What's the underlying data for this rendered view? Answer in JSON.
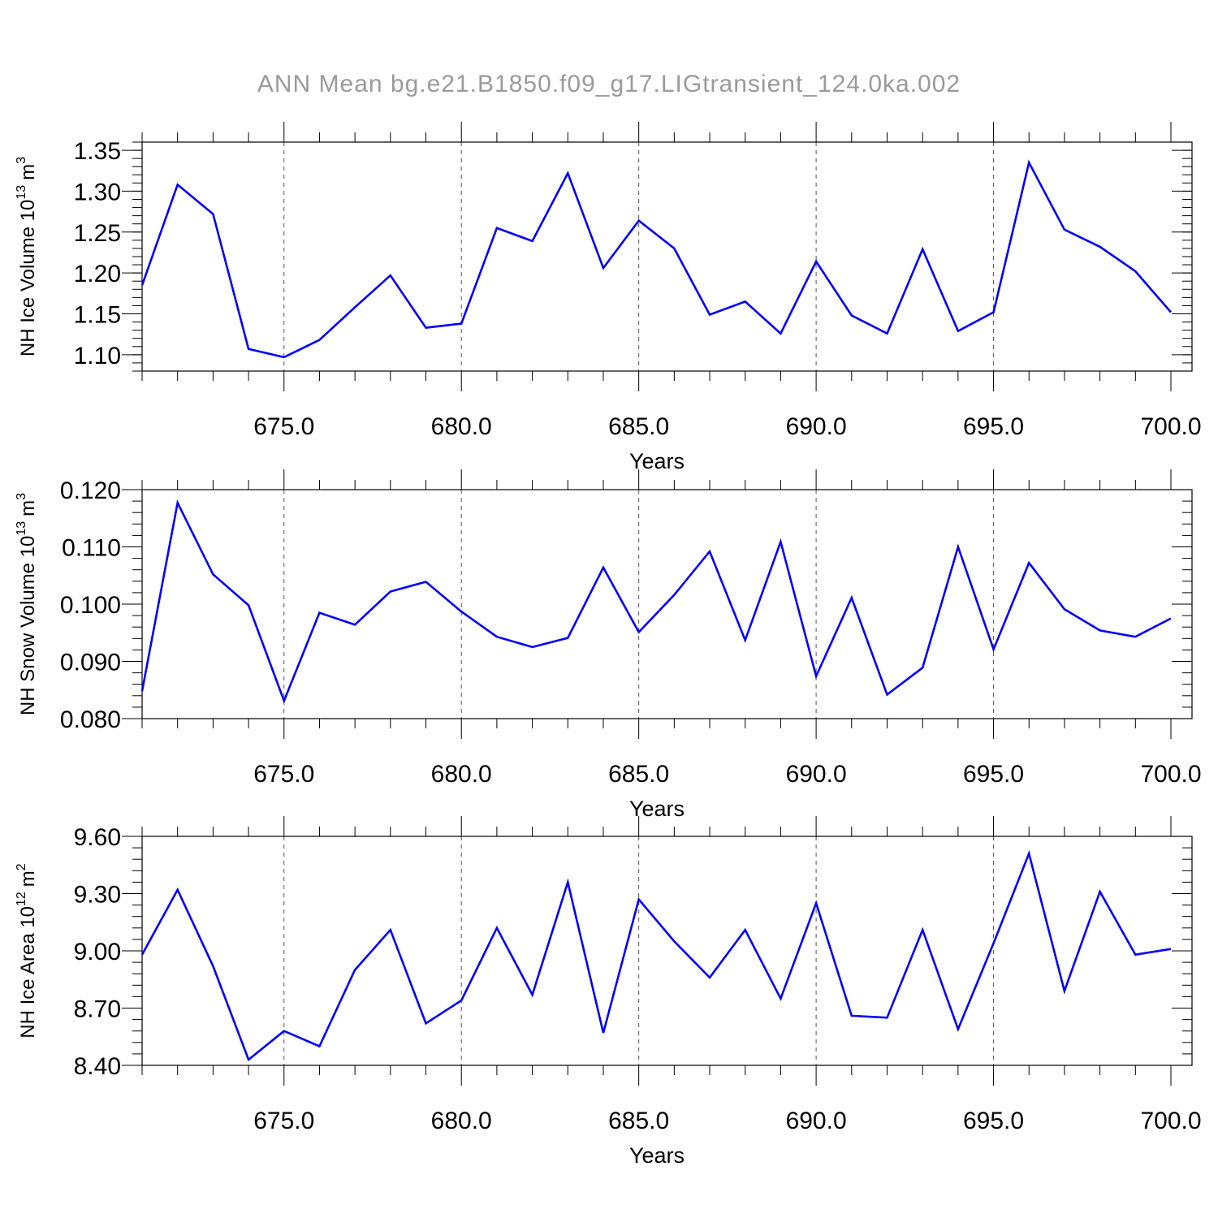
{
  "figure": {
    "title": "ANN Mean bg.e21.B1850.f09_g17.LIGtransient_124.0ka.002",
    "line_color": "#0000ff",
    "grid": "vertical dashed gray lines at major x ticks"
  },
  "chart_data": [
    {
      "type": "line",
      "title": "",
      "xlabel": "Years",
      "ylabel": "NH Ice Volume 10",
      "ylabel_sup": "13",
      "ylabel_unit": "m",
      "ylabel_unit_sup": "3",
      "xlim": [
        671,
        700
      ],
      "ylim": [
        1.08,
        1.36
      ],
      "xticks": [
        675,
        680,
        685,
        690,
        695,
        700
      ],
      "xtick_labels": [
        "675.0",
        "680.0",
        "685.0",
        "690.0",
        "695.0",
        "700.0"
      ],
      "yticks": [
        1.1,
        1.15,
        1.2,
        1.25,
        1.3,
        1.35
      ],
      "ytick_labels": [
        "1.10",
        "1.15",
        "1.20",
        "1.25",
        "1.30",
        "1.35"
      ],
      "yminor_step": 0.01,
      "x": [
        671,
        672,
        673,
        674,
        675,
        676,
        677,
        678,
        679,
        680,
        681,
        682,
        683,
        684,
        685,
        686,
        687,
        688,
        689,
        690,
        691,
        692,
        693,
        694,
        695,
        696,
        697,
        698,
        699,
        700
      ],
      "series": [
        {
          "values": [
            1.185,
            1.308,
            1.272,
            1.107,
            1.097,
            1.118,
            1.158,
            1.197,
            1.133,
            1.138,
            1.255,
            1.239,
            1.322,
            1.206,
            1.264,
            1.23,
            1.149,
            1.165,
            1.126,
            1.214,
            1.148,
            1.126,
            1.229,
            1.129,
            1.152,
            1.335,
            1.253,
            1.232,
            1.202,
            1.152
          ]
        }
      ]
    },
    {
      "type": "line",
      "title": "",
      "xlabel": "Years",
      "ylabel": "NH Snow Volume 10",
      "ylabel_sup": "13",
      "ylabel_unit": "m",
      "ylabel_unit_sup": "3",
      "xlim": [
        671,
        700
      ],
      "ylim": [
        0.08,
        0.12
      ],
      "xticks": [
        675,
        680,
        685,
        690,
        695,
        700
      ],
      "xtick_labels": [
        "675.0",
        "680.0",
        "685.0",
        "690.0",
        "695.0",
        "700.0"
      ],
      "yticks": [
        0.08,
        0.09,
        0.1,
        0.11,
        0.12
      ],
      "ytick_labels": [
        "0.080",
        "0.090",
        "0.100",
        "0.110",
        "0.120"
      ],
      "yminor_step": 0.002,
      "x": [
        671,
        672,
        673,
        674,
        675,
        676,
        677,
        678,
        679,
        680,
        681,
        682,
        683,
        684,
        685,
        686,
        687,
        688,
        689,
        690,
        691,
        692,
        693,
        694,
        695,
        696,
        697,
        698,
        699,
        700
      ],
      "series": [
        {
          "values": [
            0.0848,
            0.1177,
            0.1052,
            0.0998,
            0.0831,
            0.0985,
            0.0964,
            0.1022,
            0.1039,
            0.0987,
            0.0943,
            0.0925,
            0.0941,
            0.1064,
            0.0951,
            0.1016,
            0.1092,
            0.0937,
            0.1109,
            0.0874,
            0.1011,
            0.0842,
            0.0889,
            0.11,
            0.0921,
            0.1072,
            0.0991,
            0.0954,
            0.0943,
            0.0975
          ]
        }
      ]
    },
    {
      "type": "line",
      "title": "",
      "xlabel": "Years",
      "ylabel": "NH Ice Area 10",
      "ylabel_sup": "12",
      "ylabel_unit": "m",
      "ylabel_unit_sup": "2",
      "xlim": [
        671,
        700
      ],
      "ylim": [
        8.4,
        9.6
      ],
      "xticks": [
        675,
        680,
        685,
        690,
        695,
        700
      ],
      "xtick_labels": [
        "675.0",
        "680.0",
        "685.0",
        "690.0",
        "695.0",
        "700.0"
      ],
      "yticks": [
        8.4,
        8.7,
        9.0,
        9.3,
        9.6
      ],
      "ytick_labels": [
        "8.40",
        "8.70",
        "9.00",
        "9.30",
        "9.60"
      ],
      "yminor_step": 0.06,
      "x": [
        671,
        672,
        673,
        674,
        675,
        676,
        677,
        678,
        679,
        680,
        681,
        682,
        683,
        684,
        685,
        686,
        687,
        688,
        689,
        690,
        691,
        692,
        693,
        694,
        695,
        696,
        697,
        698,
        699,
        700
      ],
      "series": [
        {
          "values": [
            8.98,
            9.32,
            8.92,
            8.43,
            8.58,
            8.5,
            8.9,
            9.11,
            8.62,
            8.74,
            9.12,
            8.77,
            9.36,
            8.57,
            9.27,
            9.05,
            8.86,
            9.11,
            8.75,
            9.25,
            8.66,
            8.65,
            9.11,
            8.59,
            9.04,
            9.51,
            8.79,
            9.31,
            8.98,
            9.01
          ]
        }
      ]
    }
  ]
}
